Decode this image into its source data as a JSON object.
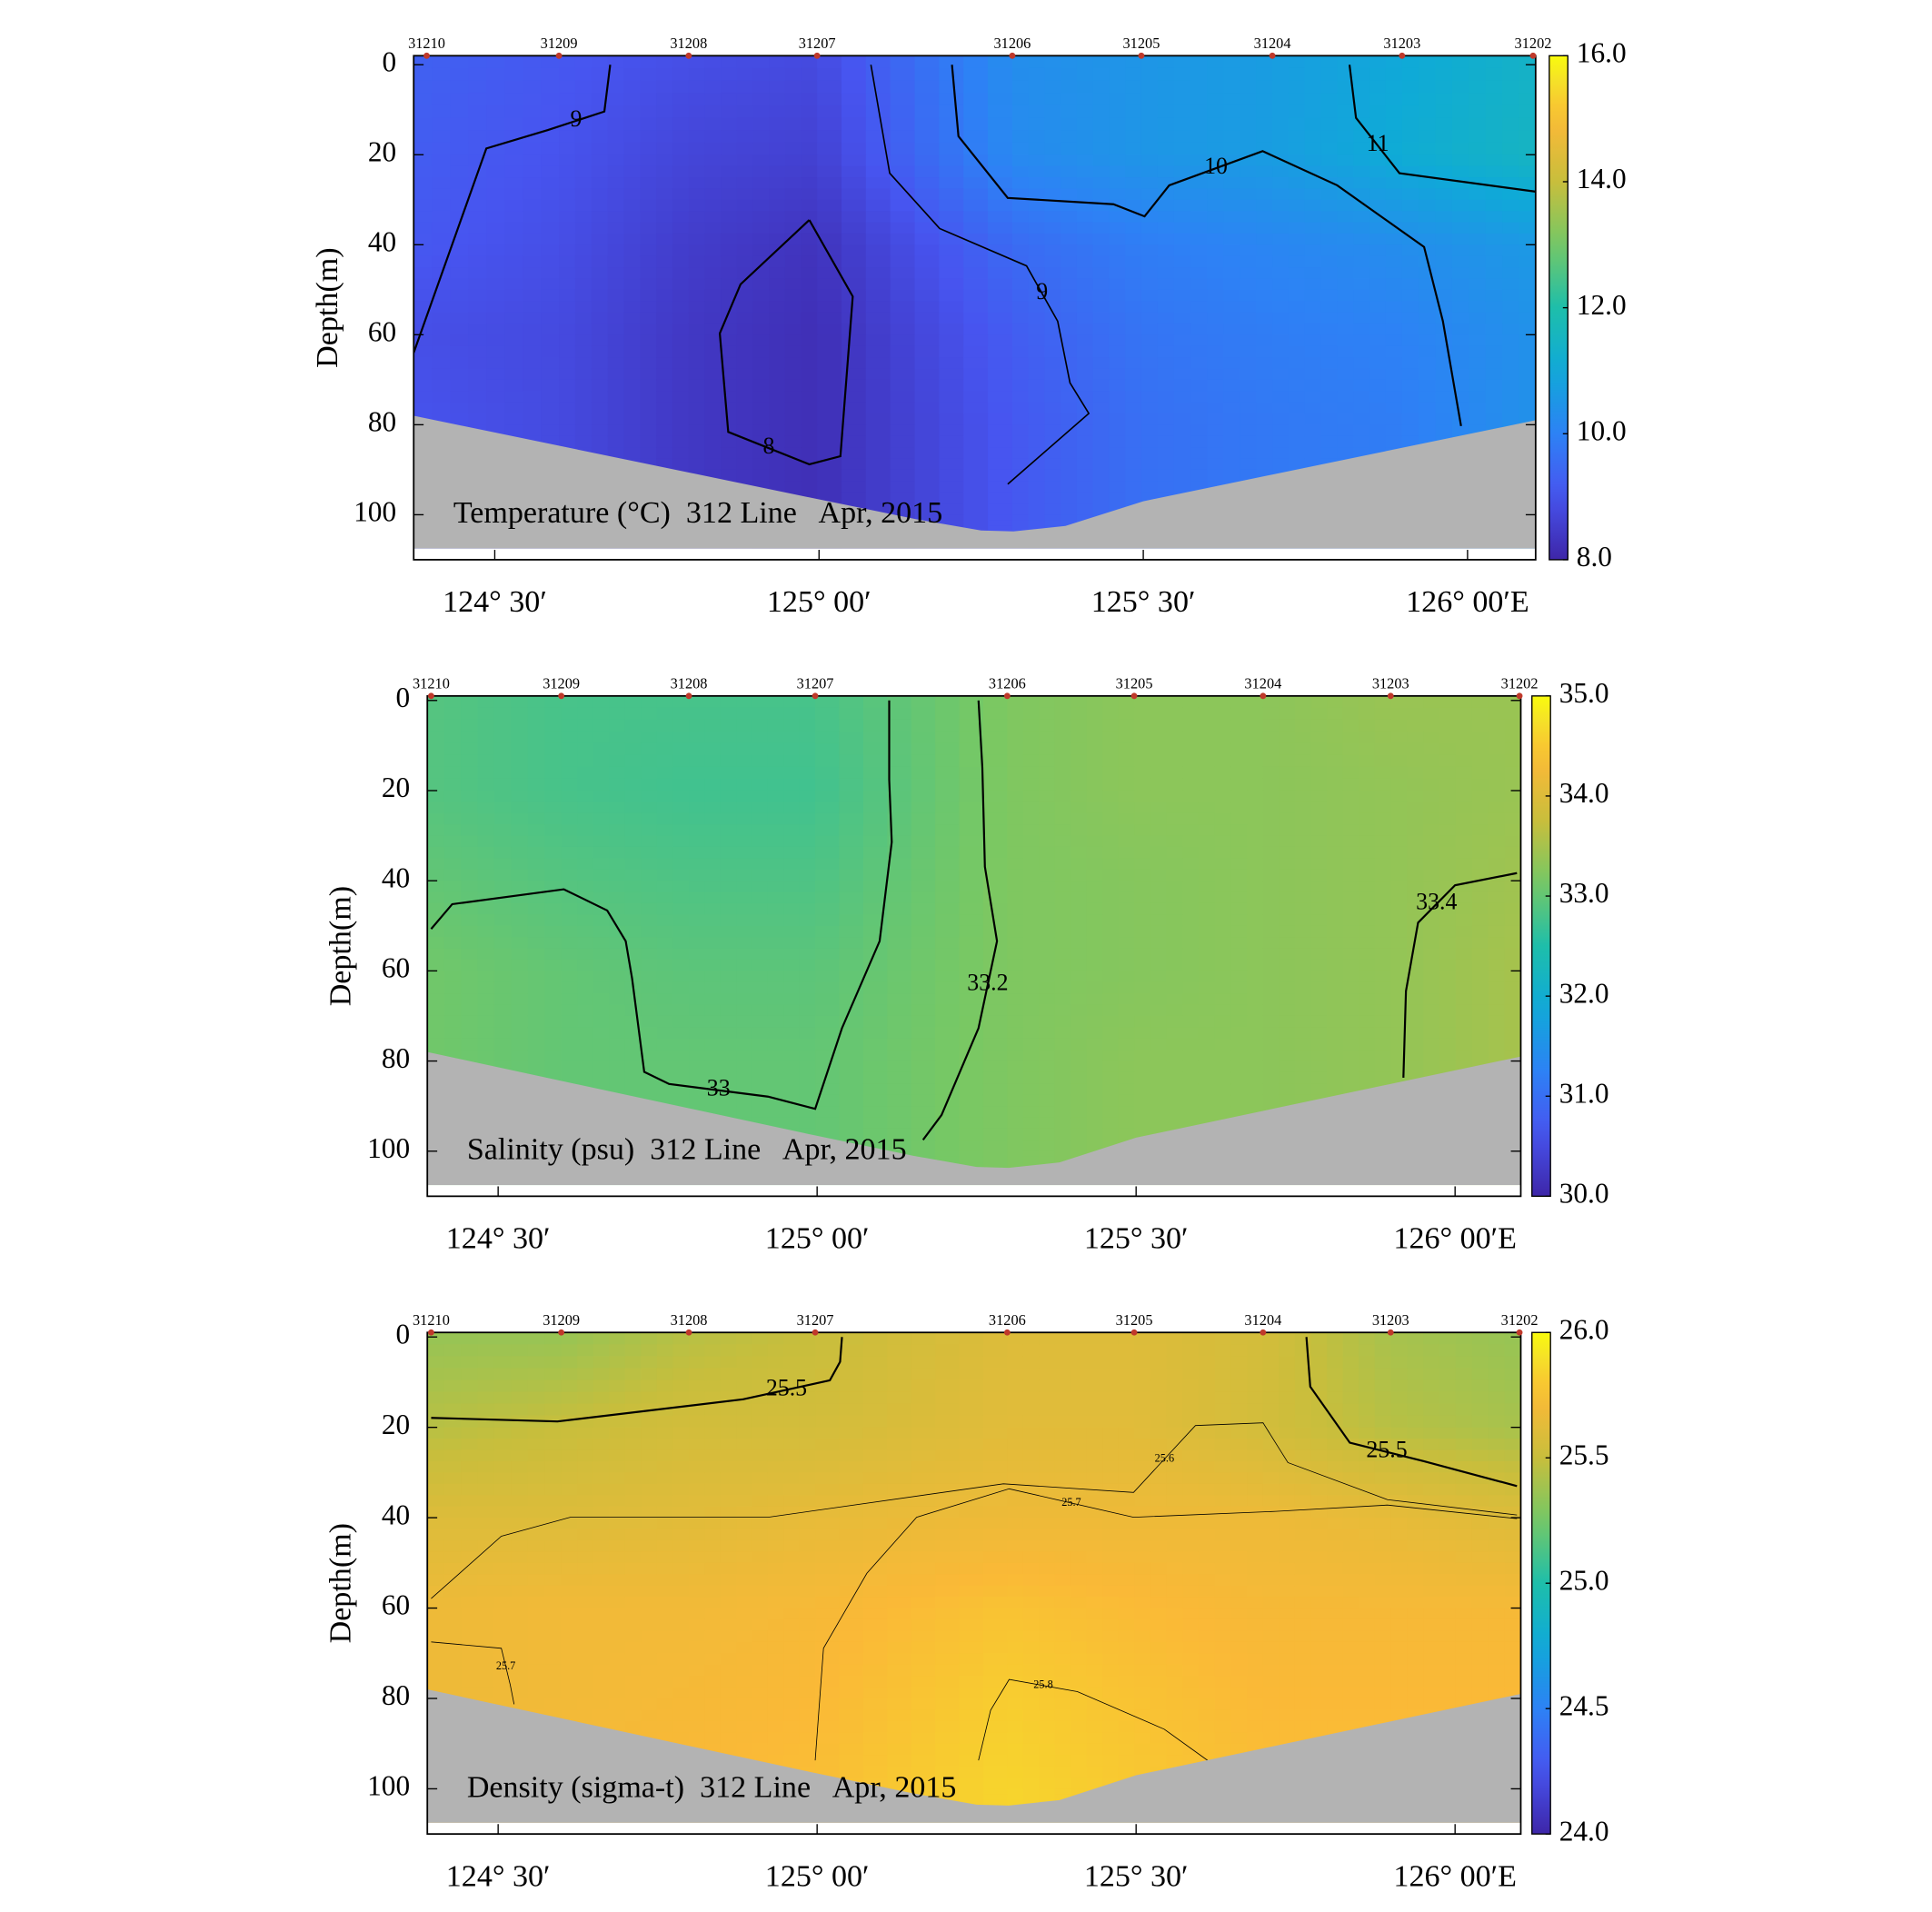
{
  "chart_data": [
    {
      "type": "contour",
      "annotation": "Temperature (°C)  312 Line   Apr, 2015",
      "ylabel": "Depth(m)",
      "xlim": [
        124.375,
        126.105
      ],
      "ylim": [
        -2,
        110
      ],
      "xticks": [
        {
          "value": 124.5,
          "label": "124° 30′"
        },
        {
          "value": 125,
          "label": "125° 00′"
        },
        {
          "value": 125.5,
          "label": "125° 30′"
        },
        {
          "value": 126,
          "label": "126° 00′E"
        }
      ],
      "yticks": [
        0,
        20,
        40,
        60,
        80,
        100
      ],
      "clim": [
        8,
        16
      ],
      "cticks": [
        {
          "value": 8,
          "label": "8.0"
        },
        {
          "value": 10,
          "label": "10.0"
        },
        {
          "value": 12,
          "label": "12.0"
        },
        {
          "value": 14,
          "label": "14.0"
        },
        {
          "value": 16,
          "label": "16.0"
        }
      ],
      "colormap": "parula",
      "stations": [
        "31210",
        "31209",
        "31208",
        "31207",
        "31206",
        "31205",
        "31204",
        "31203",
        "31202"
      ],
      "station_x": [
        124.395,
        124.599,
        124.799,
        124.997,
        125.298,
        125.497,
        125.699,
        125.899,
        126.101
      ],
      "depths": [
        0,
        20,
        40,
        60,
        80,
        100
      ],
      "z": [
        [
          9.3,
          9.1,
          8.9,
          8.8,
          10.3,
          10.5,
          10.7,
          11.0,
          11.4
        ],
        [
          9.2,
          9.0,
          8.7,
          8.6,
          10.2,
          10.5,
          10.7,
          11.1,
          11.5
        ],
        [
          9.1,
          8.9,
          8.5,
          8.3,
          9.5,
          9.9,
          10.1,
          10.3,
          10.6
        ],
        [
          8.9,
          8.8,
          8.4,
          8.2,
          9.2,
          9.7,
          9.9,
          10.0,
          10.4
        ],
        [
          9.0,
          8.8,
          8.4,
          8.2,
          9.1,
          9.6,
          9.8,
          9.9,
          10.4
        ],
        [
          9.0,
          8.8,
          8.4,
          8.2,
          9.1,
          9.6,
          9.8,
          9.9,
          10.4
        ]
      ],
      "bottom_x": [
        124.375,
        124.98,
        125.15,
        125.25,
        125.3,
        125.38,
        125.5,
        126.105
      ],
      "bottom_depth": [
        78,
        96,
        101,
        103.5,
        103.7,
        102.5,
        97,
        79
      ],
      "contours": [
        {
          "level": 9,
          "line_width": 1.6,
          "x": [
            124.375,
            124.487,
            124.582,
            124.669,
            124.678
          ],
          "depth": [
            64,
            18.6,
            14.5,
            10.4,
            0
          ]
        },
        {
          "level": 8,
          "line_width": 1.6,
          "x": [
            124.985,
            125.052,
            125.033,
            124.985,
            124.86,
            124.847,
            124.879,
            124.985
          ],
          "depth": [
            34.5,
            51.5,
            87,
            88.8,
            81.6,
            59.7,
            48.8,
            34.5
          ]
        },
        {
          "level": 10,
          "line_width": 1.6,
          "x": [
            125.205,
            125.215,
            125.291,
            125.454,
            125.502,
            125.54,
            125.684,
            125.799,
            125.933,
            125.962,
            125.99
          ],
          "depth": [
            0,
            15.9,
            29.6,
            31,
            33.7,
            26.8,
            19.2,
            26.8,
            40.5,
            57,
            80.3
          ]
        },
        {
          "level": 11,
          "line_width": 1.6,
          "x": [
            125.818,
            125.828,
            125.895,
            126.105
          ],
          "depth": [
            0,
            11.8,
            24.1,
            28.2
          ]
        },
        {
          "level": 9,
          "line_width": 1.2,
          "x": [
            125.08,
            125.109,
            125.186,
            125.32,
            125.368,
            125.387,
            125.416,
            125.291
          ],
          "depth": [
            0,
            24.1,
            36.4,
            44.7,
            57,
            70.7,
            77.5,
            93.2
          ]
        }
      ]
    },
    {
      "type": "contour",
      "annotation": "Salinity (psu)  312 Line   Apr, 2015",
      "ylabel": "Depth(m)",
      "xlim": [
        124.389,
        126.103
      ],
      "ylim": [
        -1,
        110
      ],
      "xticks": [
        {
          "value": 124.5,
          "label": "124° 30′"
        },
        {
          "value": 125,
          "label": "125° 00′"
        },
        {
          "value": 125.5,
          "label": "125° 30′"
        },
        {
          "value": 126,
          "label": "126° 00′E"
        }
      ],
      "yticks": [
        0,
        20,
        40,
        60,
        80,
        100
      ],
      "clim": [
        30,
        35
      ],
      "cticks": [
        {
          "value": 30,
          "label": "30.0"
        },
        {
          "value": 31,
          "label": "31.0"
        },
        {
          "value": 32,
          "label": "32.0"
        },
        {
          "value": 33,
          "label": "33.0"
        },
        {
          "value": 34,
          "label": "34.0"
        },
        {
          "value": 35,
          "label": "35.0"
        }
      ],
      "colormap": "parula",
      "stations": [
        "31210",
        "31209",
        "31208",
        "31207",
        "31206",
        "31205",
        "31204",
        "31203",
        "31202"
      ],
      "station_x": [
        124.395,
        124.599,
        124.799,
        124.997,
        125.298,
        125.497,
        125.699,
        125.899,
        126.101
      ],
      "depths": [
        0,
        20,
        40,
        60,
        80,
        100
      ],
      "z": [
        [
          32.9,
          32.8,
          32.8,
          32.8,
          33.2,
          33.3,
          33.3,
          33.4,
          33.4
        ],
        [
          32.9,
          32.8,
          32.75,
          32.75,
          33.2,
          33.3,
          33.3,
          33.35,
          33.4
        ],
        [
          33.0,
          32.9,
          32.85,
          32.85,
          33.2,
          33.25,
          33.3,
          33.35,
          33.45
        ],
        [
          33.1,
          33.0,
          32.95,
          32.95,
          33.2,
          33.25,
          33.3,
          33.35,
          33.5
        ],
        [
          33.1,
          33.0,
          33.0,
          33.0,
          33.2,
          33.3,
          33.3,
          33.35,
          33.5
        ],
        [
          33.1,
          33.0,
          33.0,
          33.0,
          33.2,
          33.3,
          33.3,
          33.35,
          33.5
        ]
      ],
      "bottom_x": [
        124.389,
        124.98,
        125.15,
        125.25,
        125.3,
        125.38,
        125.5,
        126.103
      ],
      "bottom_depth": [
        78,
        96,
        101,
        103.5,
        103.7,
        102.5,
        97,
        79
      ],
      "contours": [
        {
          "level": 33,
          "line_width": 1.6,
          "x": [
            124.395,
            124.428,
            124.603,
            124.671,
            124.7,
            124.71,
            124.729,
            124.768,
            124.923,
            124.997,
            125.039,
            125.098,
            125.117,
            125.113,
            125.113
          ],
          "depth": [
            50.7,
            45.2,
            41.9,
            46.6,
            53.4,
            61.7,
            82.4,
            85.1,
            87.9,
            90.6,
            72.7,
            53.4,
            31.4,
            17.6,
            0
          ]
        },
        {
          "level": 33.2,
          "line_width": 1.6,
          "x": [
            125.253,
            125.259,
            125.263,
            125.282,
            125.253,
            125.195,
            125.166
          ],
          "depth": [
            0,
            14.9,
            36.9,
            53.4,
            72.7,
            92,
            97.5
          ]
        },
        {
          "level": 33.4,
          "line_width": 1.6,
          "x": [
            125.919,
            125.923,
            125.942,
            126.0,
            126.097
          ],
          "depth": [
            83.7,
            64.5,
            49.3,
            41,
            38.3
          ]
        }
      ]
    },
    {
      "type": "contour",
      "annotation": "Density (sigma-t)  312 Line   Apr, 2015",
      "ylabel": "Depth(m)",
      "xlim": [
        124.389,
        126.103
      ],
      "ylim": [
        -1,
        110
      ],
      "xticks": [
        {
          "value": 124.5,
          "label": "124° 30′"
        },
        {
          "value": 125,
          "label": "125° 00′"
        },
        {
          "value": 125.5,
          "label": "125° 30′"
        },
        {
          "value": 126,
          "label": "126° 00′E"
        }
      ],
      "yticks": [
        0,
        20,
        40,
        60,
        80,
        100
      ],
      "clim": [
        24,
        26
      ],
      "cticks": [
        {
          "value": 24,
          "label": "24.0"
        },
        {
          "value": 24.5,
          "label": "24.5"
        },
        {
          "value": 25,
          "label": "25.0"
        },
        25.5,
        {
          "value": 26,
          "label": "26.0"
        }
      ],
      "colormap": "parula",
      "stations": [
        "31210",
        "31209",
        "31208",
        "31207",
        "31206",
        "31205",
        "31204",
        "31203",
        "31202"
      ],
      "station_x": [
        124.395,
        124.599,
        124.799,
        124.997,
        125.298,
        125.497,
        125.699,
        125.899,
        126.101
      ],
      "depths": [
        0,
        20,
        40,
        60,
        80,
        100
      ],
      "z": [
        [
          25.35,
          25.35,
          25.45,
          25.5,
          25.6,
          25.6,
          25.55,
          25.4,
          25.35
        ],
        [
          25.45,
          25.5,
          25.55,
          25.55,
          25.62,
          25.62,
          25.55,
          25.45,
          25.4
        ],
        [
          25.6,
          25.6,
          25.62,
          25.65,
          25.68,
          25.68,
          25.68,
          25.65,
          25.6
        ],
        [
          25.68,
          25.7,
          25.7,
          25.72,
          25.78,
          25.75,
          25.72,
          25.72,
          25.72
        ],
        [
          25.68,
          25.7,
          25.72,
          25.74,
          25.82,
          25.78,
          25.74,
          25.74,
          25.74
        ],
        [
          25.7,
          25.72,
          25.74,
          25.76,
          25.85,
          25.8,
          25.76,
          25.76,
          25.76
        ]
      ],
      "bottom_x": [
        124.389,
        124.98,
        125.15,
        125.25,
        125.3,
        125.38,
        125.5,
        126.103
      ],
      "bottom_depth": [
        78,
        96,
        101,
        103.5,
        103.7,
        102.5,
        97,
        79
      ],
      "contours": [
        {
          "level": 25.5,
          "line_width": 1.6,
          "x": [
            124.395,
            124.593,
            124.884,
            125.02,
            125.036,
            125.039
          ],
          "depth": [
            17.9,
            18.7,
            13.8,
            9.6,
            5.5,
            0
          ]
        },
        {
          "level": 25.5,
          "line_width": 1.6,
          "x": [
            125.767,
            125.773,
            125.835,
            125.951,
            126.097
          ],
          "depth": [
            0,
            11,
            23.4,
            27.5,
            33
          ]
        },
        {
          "level": 25.6,
          "line_width": 0.6,
          "x": [
            124.395,
            124.505,
            124.613,
            124.923,
            125.292,
            125.496,
            125.593,
            125.699,
            125.738,
            125.894,
            126.097
          ],
          "depth": [
            57.9,
            44.1,
            39.9,
            39.9,
            32.5,
            34.4,
            19.6,
            19,
            27.8,
            36,
            39.4
          ]
        },
        {
          "level": 25.7,
          "line_width": 0.6,
          "x": [
            124.395,
            124.505,
            124.519,
            124.525
          ],
          "depth": [
            67.5,
            68.9,
            77,
            81.3
          ]
        },
        {
          "level": 25.7,
          "line_width": 0.6,
          "x": [
            124.997,
            125.01,
            125.078,
            125.156,
            125.301,
            125.496,
            125.719,
            125.894,
            126.097
          ],
          "depth": [
            93.7,
            68.9,
            52.3,
            39.9,
            33.6,
            39.9,
            38.6,
            37.2,
            40.2
          ]
        },
        {
          "level": 25.8,
          "line_width": 0.6,
          "x": [
            125.253,
            125.272,
            125.301,
            125.408,
            125.544,
            125.612
          ],
          "depth": [
            93.7,
            82.6,
            75.8,
            78.5,
            86.8,
            93.7
          ]
        }
      ]
    }
  ]
}
